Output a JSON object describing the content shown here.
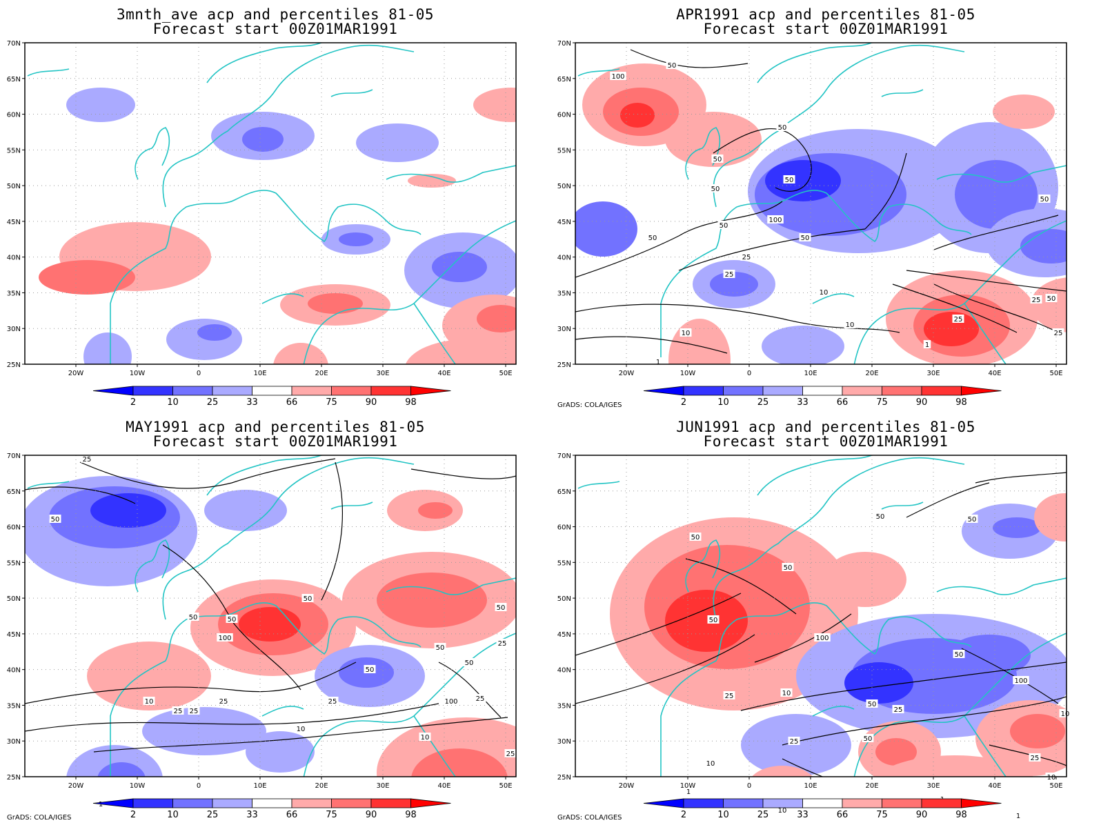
{
  "software_credit": "GrADS: COLA/IGES",
  "lat_ticks": [
    "70N",
    "65N",
    "60N",
    "55N",
    "50N",
    "45N",
    "40N",
    "35N",
    "30N",
    "25N"
  ],
  "lon_ticks": [
    "20W",
    "10W",
    "0",
    "10E",
    "20E",
    "30E",
    "40E",
    "50E"
  ],
  "colorbar": {
    "labels": [
      "2",
      "10",
      "25",
      "33",
      "66",
      "75",
      "90",
      "98"
    ],
    "colors": [
      "#0000ff",
      "#3333ff",
      "#7272ff",
      "#aaaaff",
      "#ffffff",
      "#ffaaaa",
      "#ff7272",
      "#ff3333",
      "#ff0000"
    ]
  },
  "coastline_color": "#22c4c4",
  "contour_color": "#000000",
  "panels": [
    {
      "title_line1": "3mnth_ave acp and percentiles 81-05",
      "title_line2": "Forecast start 00Z01MAR1991",
      "show_credit": false,
      "contour_labels": []
    },
    {
      "title_line1": "APR1991 acp and percentiles 81-05",
      "title_line2": "Forecast start 00Z01MAR1991",
      "show_credit": true,
      "contour_labels": [
        "100",
        "50",
        "50",
        "50",
        "50",
        "50",
        "100",
        "50",
        "50",
        "25",
        "25",
        "50",
        "25",
        "50",
        "25",
        "10",
        "10",
        "10",
        "50",
        "25",
        "1",
        "1"
      ]
    },
    {
      "title_line1": "MAY1991 acp and percentiles 81-05",
      "title_line2": "Forecast start 00Z01MAR1991",
      "show_credit": true,
      "contour_labels": [
        "25",
        "50",
        "50",
        "50",
        "50",
        "50",
        "100",
        "50",
        "25",
        "25",
        "25",
        "25",
        "25",
        "10",
        "10",
        "10",
        "100",
        "50",
        "25",
        "1",
        "50",
        "25"
      ]
    },
    {
      "title_line1": "JUN1991 acp and percentiles 81-05",
      "title_line2": "Forecast start 00Z01MAR1991",
      "show_credit": true,
      "contour_labels": [
        "50",
        "50",
        "50",
        "50",
        "50",
        "100",
        "50",
        "25",
        "25",
        "50",
        "100",
        "10",
        "50",
        "25",
        "10",
        "25",
        "10",
        "10",
        "1",
        "1",
        "10",
        "1"
      ]
    }
  ]
}
